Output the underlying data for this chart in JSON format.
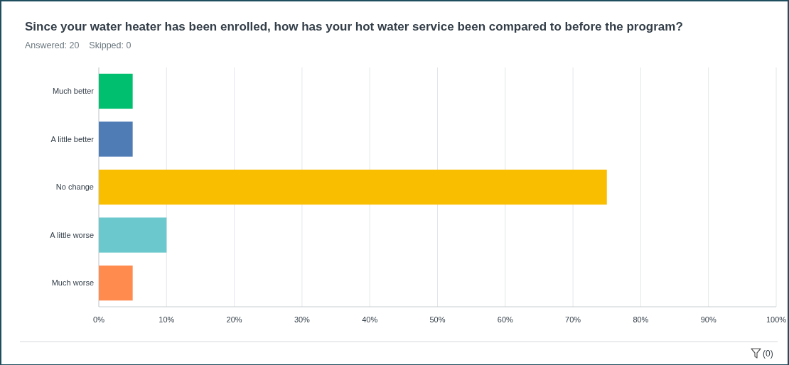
{
  "chart_data": {
    "type": "bar",
    "orientation": "horizontal",
    "title": "Since your water heater has been enrolled, how has your hot water service been compared to before the program?",
    "subtitle": "Answered: 20    Skipped: 0",
    "categories": [
      "Much better",
      "A little better",
      "No change",
      "A little worse",
      "Much worse"
    ],
    "values": [
      5,
      5,
      75,
      10,
      5
    ],
    "colors": [
      "#00bf6f",
      "#507cb6",
      "#f9be00",
      "#6bc8cd",
      "#ff8b4f"
    ],
    "xlim": [
      0,
      100
    ],
    "xticks": [
      {
        "value": 0,
        "label": "0%"
      },
      {
        "value": 10,
        "label": "10%"
      },
      {
        "value": 20,
        "label": "20%"
      },
      {
        "value": 30,
        "label": "30%"
      },
      {
        "value": 40,
        "label": "40%"
      },
      {
        "value": 50,
        "label": "50%"
      },
      {
        "value": 60,
        "label": "60%"
      },
      {
        "value": 70,
        "label": "70%"
      },
      {
        "value": 80,
        "label": "80%"
      },
      {
        "value": 90,
        "label": "90%"
      },
      {
        "value": 100,
        "label": "100%"
      }
    ],
    "grid": "x",
    "annotations": [
      "(0)"
    ]
  }
}
